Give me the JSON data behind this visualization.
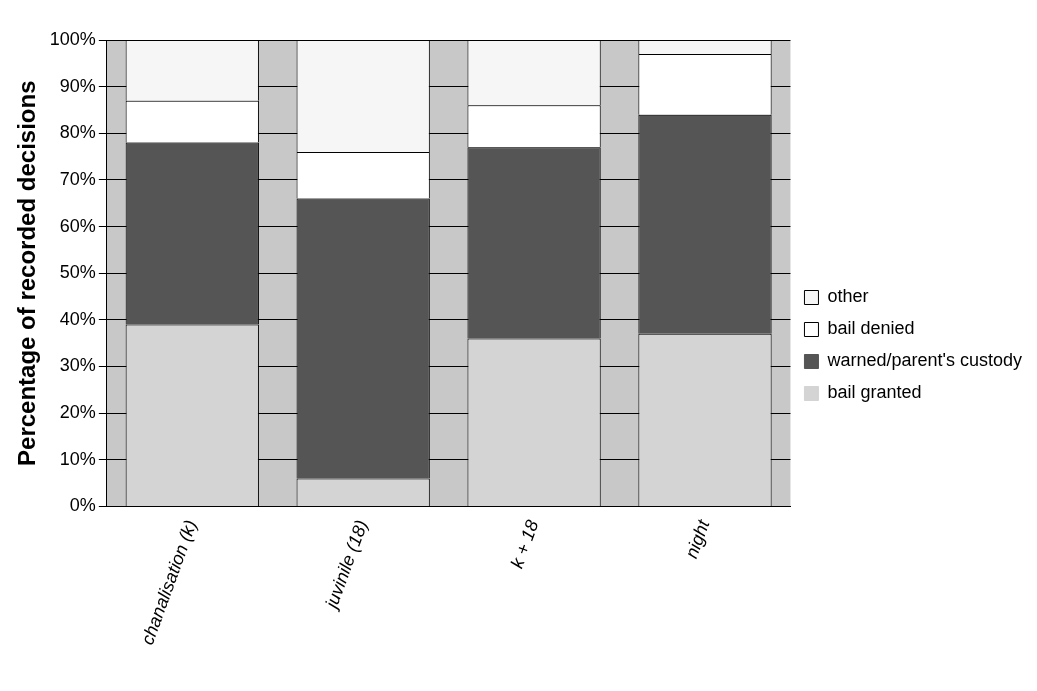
{
  "chart_data": {
    "type": "bar",
    "stacked": true,
    "ylabel": "Percentage of recorded decisions",
    "categories": [
      "chanalisation (k)",
      "juvinile (18)",
      "k + 18",
      "night"
    ],
    "series": [
      {
        "name": "bail granted",
        "color": "#d4d4d4",
        "values": [
          39,
          6,
          36,
          37
        ]
      },
      {
        "name": "warned/parent's custody",
        "color": "#555555",
        "values": [
          39,
          60,
          41,
          47
        ]
      },
      {
        "name": "bail denied",
        "color": "#ffffff",
        "values": [
          9,
          10,
          9,
          13
        ]
      },
      {
        "name": "other",
        "color": "#f6f6f6",
        "values": [
          13,
          24,
          14,
          3
        ]
      }
    ],
    "ylim": [
      0,
      100
    ],
    "yticks": [
      {
        "value": 0,
        "label": "0%"
      },
      {
        "value": 10,
        "label": "10%"
      },
      {
        "value": 20,
        "label": "20%"
      },
      {
        "value": 30,
        "label": "30%"
      },
      {
        "value": 40,
        "label": "40%"
      },
      {
        "value": 50,
        "label": "50%"
      },
      {
        "value": 60,
        "label": "60%"
      },
      {
        "value": 70,
        "label": "70%"
      },
      {
        "value": 80,
        "label": "80%"
      },
      {
        "value": 90,
        "label": "90%"
      },
      {
        "value": 100,
        "label": "100%"
      }
    ],
    "grid": "y",
    "legend": "right"
  }
}
